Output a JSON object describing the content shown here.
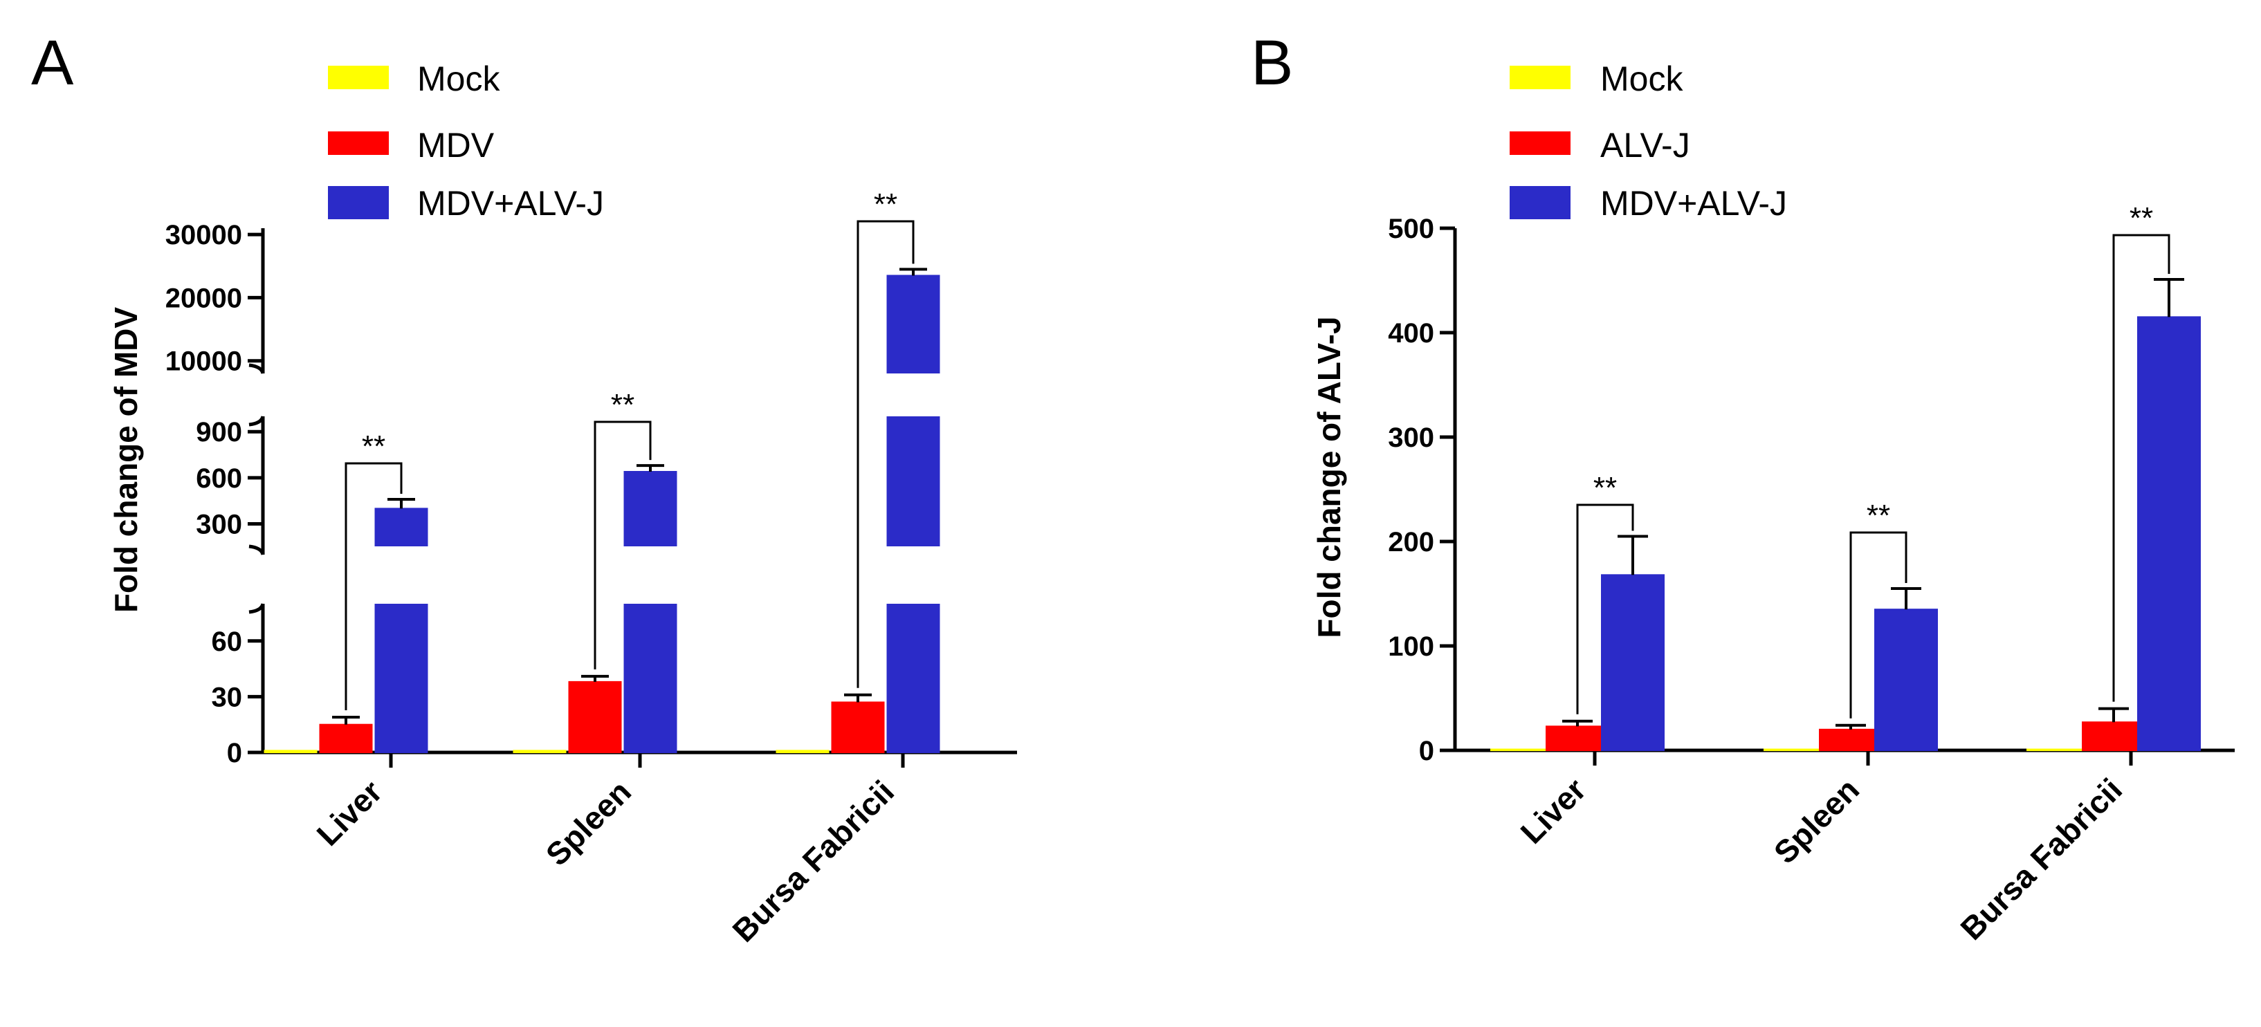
{
  "chart_data": [
    {
      "panel": "A",
      "type": "bar",
      "title": "",
      "xlabel": "",
      "ylabel": "Fold change of MDV",
      "categories": [
        "Liver",
        "Spleen",
        "Bursa Fabricii"
      ],
      "series": [
        {
          "name": "Mock",
          "color": "#ffff00",
          "values": [
            1,
            1,
            1
          ],
          "errors": [
            0,
            0,
            0
          ]
        },
        {
          "name": "MDV",
          "color": "#ff0000",
          "values": [
            15,
            38,
            27
          ],
          "errors": [
            4,
            3,
            4
          ]
        },
        {
          "name": "MDV+ALV-J",
          "color": "#2b2bc8",
          "values": [
            400,
            640,
            23500
          ],
          "errors": [
            60,
            40,
            1000
          ]
        }
      ],
      "axis_breaks": true,
      "y_segments": [
        {
          "range": [
            0,
            80
          ],
          "ticks": [
            0,
            30,
            60
          ],
          "tick_labels": [
            "0",
            "30",
            "60"
          ]
        },
        {
          "range": [
            100,
            1000
          ],
          "ticks": [
            300,
            600,
            900
          ],
          "tick_labels": [
            "300",
            "600",
            "900"
          ]
        },
        {
          "range": [
            8000,
            31000
          ],
          "ticks": [
            10000,
            20000,
            30000
          ],
          "tick_labels": [
            "10000",
            "20000",
            "30000"
          ]
        }
      ],
      "significance": [
        {
          "category": "Liver",
          "label": "**"
        },
        {
          "category": "Spleen",
          "label": "**"
        },
        {
          "category": "Bursa Fabricii",
          "label": "**"
        }
      ]
    },
    {
      "panel": "B",
      "type": "bar",
      "title": "",
      "xlabel": "",
      "ylabel": "Fold change of ALV-J",
      "categories": [
        "Liver",
        "Spleen",
        "Bursa Fabricii"
      ],
      "series": [
        {
          "name": "Mock",
          "color": "#ffff00",
          "values": [
            1,
            1,
            1
          ],
          "errors": [
            0,
            0,
            0
          ]
        },
        {
          "name": "ALV-J",
          "color": "#ff0000",
          "values": [
            23,
            20,
            27
          ],
          "errors": [
            5,
            4,
            13
          ]
        },
        {
          "name": "MDV+ALV-J",
          "color": "#2b2bc8",
          "values": [
            168,
            135,
            415
          ],
          "errors": [
            37,
            20,
            36
          ]
        }
      ],
      "ylim": [
        0,
        500
      ],
      "yticks": [
        0,
        100,
        200,
        300,
        400,
        500
      ],
      "ytick_labels": [
        "0",
        "100",
        "200",
        "300",
        "400",
        "500"
      ],
      "significance": [
        {
          "category": "Liver",
          "label": "**"
        },
        {
          "category": "Spleen",
          "label": "**"
        },
        {
          "category": "Bursa Fabricii",
          "label": "**"
        }
      ]
    }
  ]
}
